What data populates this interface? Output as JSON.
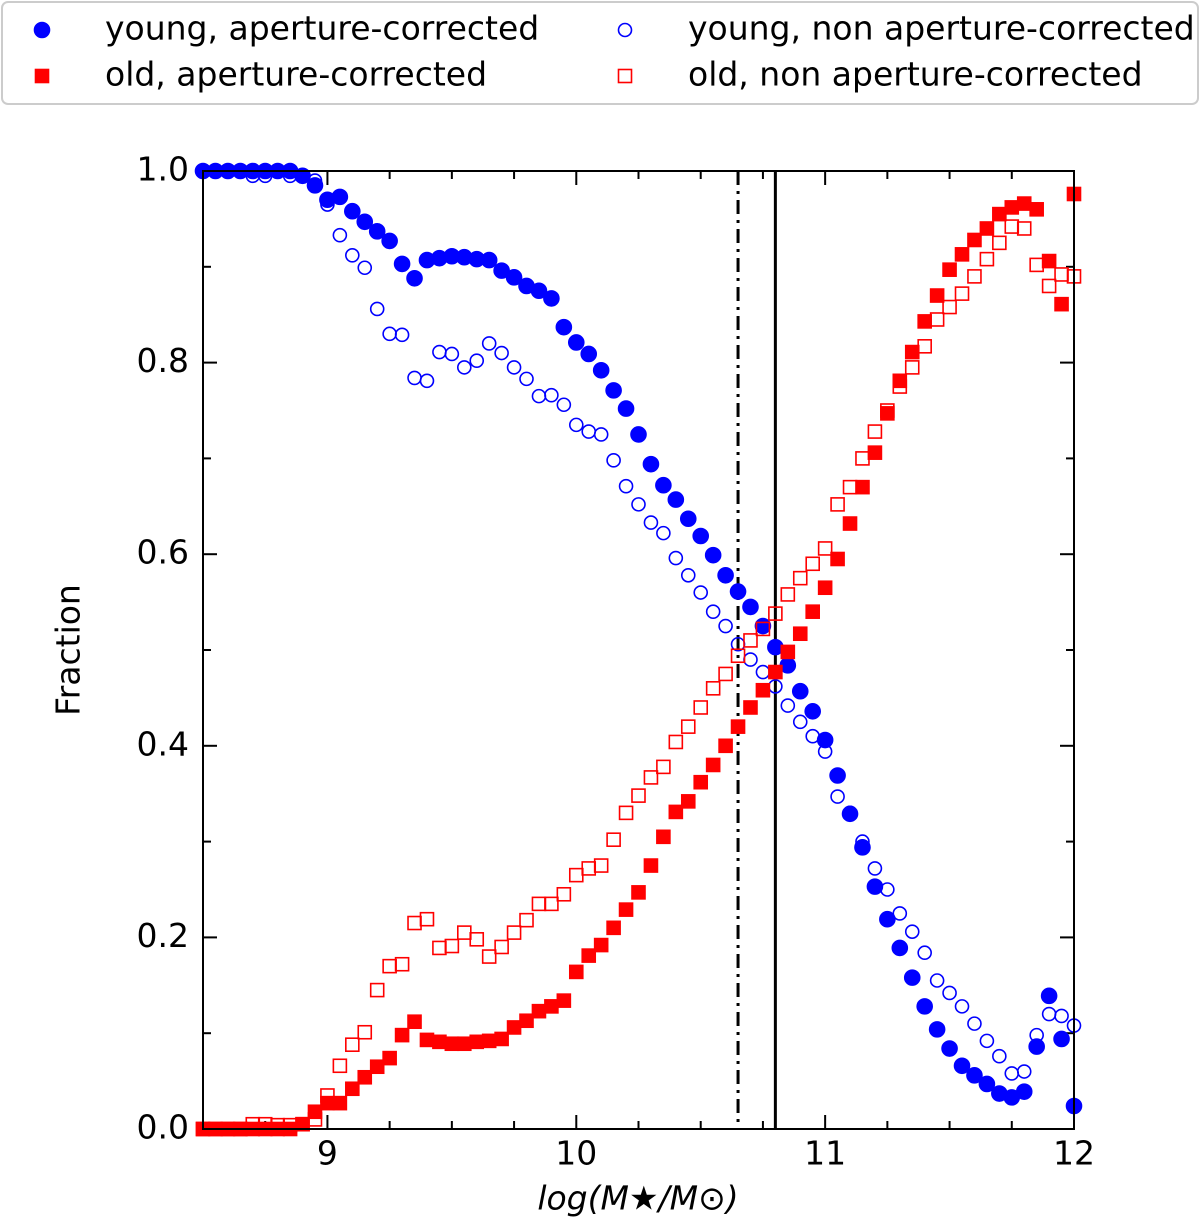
{
  "chart_data": {
    "type": "scatter",
    "x_label": "log(M★/M⊙)",
    "y_label": "Fraction",
    "xlim": [
      8.5,
      12
    ],
    "ylim": [
      0,
      1
    ],
    "xticks": [
      9,
      10,
      11,
      12
    ],
    "xminorticks": [
      8.75,
      9.25,
      9.5,
      9.75,
      10.25,
      10.5,
      10.75,
      11.25,
      11.5,
      11.75
    ],
    "yticks": [
      {
        "value": 0,
        "label": "0.0"
      },
      {
        "value": 0.2,
        "label": "0.2"
      },
      {
        "value": 0.4,
        "label": "0.4"
      },
      {
        "value": 0.6,
        "label": "0.6"
      },
      {
        "value": 0.8,
        "label": "0.8"
      },
      {
        "value": 1,
        "label": "1.0"
      }
    ],
    "yminorticks": [
      0.1,
      0.3,
      0.5,
      0.7,
      0.9
    ],
    "legend": "top",
    "vlines": [
      {
        "value": 10.65,
        "style": "dashdot"
      },
      {
        "value": 10.8,
        "style": "solid"
      }
    ],
    "x": [
      8.5,
      8.55,
      8.6,
      8.65,
      8.7,
      8.75,
      8.8,
      8.85,
      8.9,
      8.95,
      9,
      9.05,
      9.1,
      9.15,
      9.2,
      9.25,
      9.3,
      9.35,
      9.4,
      9.45,
      9.5,
      9.55,
      9.6,
      9.65,
      9.7,
      9.75,
      9.8,
      9.85,
      9.9,
      9.95,
      10,
      10.05,
      10.1,
      10.15,
      10.2,
      10.25,
      10.3,
      10.35,
      10.4,
      10.45,
      10.5,
      10.55,
      10.6,
      10.65,
      10.7,
      10.75,
      10.8,
      10.85,
      10.9,
      10.95,
      11,
      11.05,
      11.1,
      11.15,
      11.2,
      11.25,
      11.3,
      11.35,
      11.4,
      11.45,
      11.5,
      11.55,
      11.6,
      11.65,
      11.7,
      11.75,
      11.8,
      11.85,
      11.9,
      11.95,
      12
    ],
    "series": [
      {
        "name": "young, aperture-corrected",
        "color": "#0000ff",
        "marker": "circle",
        "filled": true,
        "values": [
          1,
          1,
          1,
          1,
          1,
          1,
          1,
          1,
          0.995,
          0.985,
          0.97,
          0.973,
          0.958,
          0.947,
          0.937,
          0.927,
          0.903,
          0.888,
          0.907,
          0.909,
          0.911,
          0.91,
          0.908,
          0.907,
          0.896,
          0.889,
          0.88,
          0.875,
          0.867,
          0.837,
          0.821,
          0.809,
          0.792,
          0.771,
          0.752,
          0.725,
          0.694,
          0.672,
          0.657,
          0.637,
          0.619,
          0.599,
          0.578,
          0.561,
          0.545,
          0.525,
          0.503,
          0.484,
          0.457,
          0.436,
          0.406,
          0.369,
          0.329,
          0.294,
          0.253,
          0.219,
          0.189,
          0.158,
          0.128,
          0.104,
          0.084,
          0.066,
          0.056,
          0.047,
          0.037,
          0.033,
          0.039,
          0.086,
          0.139,
          0.094,
          0.024
        ]
      },
      {
        "name": "young, non aperture-corrected",
        "color": "#0000ff",
        "marker": "circle",
        "filled": false,
        "values": [
          1,
          1,
          1,
          1,
          0.995,
          0.995,
          1,
          0.995,
          0.995,
          0.99,
          0.965,
          0.933,
          0.912,
          0.899,
          0.856,
          0.83,
          0.829,
          0.784,
          0.781,
          0.811,
          0.809,
          0.795,
          0.802,
          0.82,
          0.81,
          0.795,
          0.783,
          0.765,
          0.766,
          0.756,
          0.735,
          0.728,
          0.725,
          0.698,
          0.671,
          0.652,
          0.633,
          0.622,
          0.596,
          0.578,
          0.56,
          0.54,
          0.525,
          0.506,
          0.49,
          0.477,
          0.462,
          0.442,
          0.425,
          0.41,
          0.394,
          0.347,
          0.33,
          0.3,
          0.272,
          0.25,
          0.225,
          0.206,
          0.184,
          0.155,
          0.142,
          0.128,
          0.11,
          0.092,
          0.076,
          0.058,
          0.06,
          0.098,
          0.12,
          0.118,
          0.108
        ]
      },
      {
        "name": "old, aperture-corrected",
        "color": "#ff0000",
        "marker": "square",
        "filled": true,
        "values": [
          0,
          0,
          0,
          0,
          0,
          0,
          0,
          0,
          0.005,
          0.018,
          0.027,
          0.027,
          0.042,
          0.054,
          0.065,
          0.074,
          0.098,
          0.112,
          0.093,
          0.091,
          0.089,
          0.089,
          0.091,
          0.092,
          0.094,
          0.106,
          0.113,
          0.123,
          0.128,
          0.134,
          0.164,
          0.181,
          0.192,
          0.21,
          0.229,
          0.247,
          0.275,
          0.305,
          0.331,
          0.342,
          0.362,
          0.38,
          0.4,
          0.42,
          0.44,
          0.458,
          0.477,
          0.498,
          0.517,
          0.54,
          0.565,
          0.595,
          0.632,
          0.67,
          0.706,
          0.747,
          0.781,
          0.811,
          0.843,
          0.87,
          0.897,
          0.913,
          0.928,
          0.94,
          0.955,
          0.962,
          0.966,
          0.96,
          0.906,
          0.861,
          0.976
        ]
      },
      {
        "name": "old, non aperture-corrected",
        "color": "#ff0000",
        "marker": "square",
        "filled": false,
        "values": [
          0,
          0,
          0,
          0,
          0.005,
          0.005,
          0.004,
          0.004,
          0.005,
          0.01,
          0.035,
          0.066,
          0.088,
          0.101,
          0.145,
          0.17,
          0.172,
          0.215,
          0.219,
          0.189,
          0.191,
          0.205,
          0.198,
          0.18,
          0.19,
          0.205,
          0.218,
          0.235,
          0.235,
          0.245,
          0.265,
          0.272,
          0.275,
          0.302,
          0.33,
          0.348,
          0.367,
          0.378,
          0.404,
          0.42,
          0.44,
          0.46,
          0.475,
          0.494,
          0.51,
          0.522,
          0.538,
          0.558,
          0.575,
          0.59,
          0.606,
          0.652,
          0.67,
          0.7,
          0.728,
          0.75,
          0.775,
          0.795,
          0.817,
          0.845,
          0.858,
          0.872,
          0.89,
          0.908,
          0.925,
          0.942,
          0.94,
          0.902,
          0.88,
          0.892,
          0.89
        ]
      }
    ]
  }
}
